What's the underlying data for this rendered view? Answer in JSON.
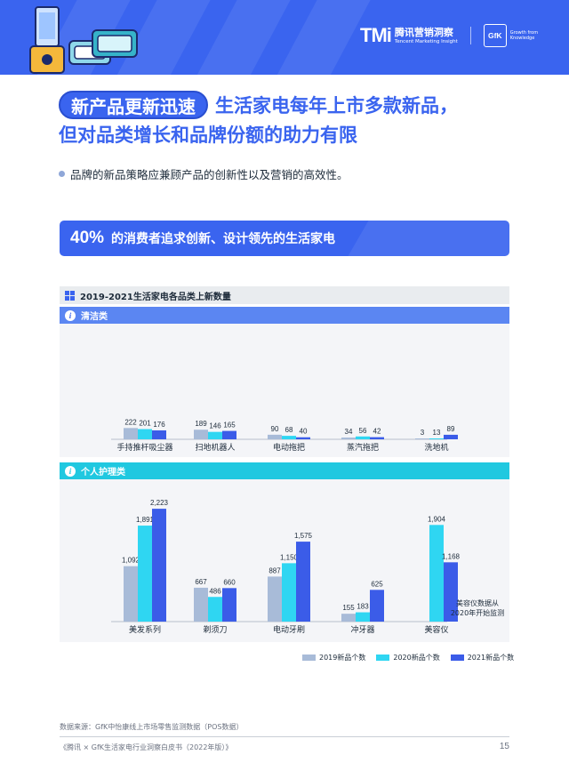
{
  "header": {
    "brand_tmi": "TMi",
    "brand_cn": "腾讯营销洞察",
    "brand_en": "Tencent Marketing Insight",
    "gfk_logo": "GfK",
    "gfk_tagline": "Growth from Knowledge",
    "illustration_icon": "blender-appliance-icon"
  },
  "title": {
    "pill": "新产品更新迅速",
    "line1_rest": "生活家电每年上市多款新品，",
    "line2": "但对品类增长和品牌份额的助力有限"
  },
  "bullet": "品牌的新品策略应兼顾产品的创新性以及营销的高效性。",
  "highlight": {
    "percent": "40%",
    "text": "的消费者追求创新、设计领先的生活家电"
  },
  "chart_panel": {
    "title": "2019-2021生活家电各品类上新数量"
  },
  "colors": {
    "brand_blue": "#3a64ef",
    "cat_clean_bar": "#5b86f2",
    "cat_care_bar": "#20c8e0",
    "series_2019": "#a8bbd8",
    "series_2020": "#2fd6f2",
    "series_2021": "#3b5ce8"
  },
  "chart_data": [
    {
      "type": "bar",
      "title": "清洁类",
      "categories": [
        "手持推杆吸尘器",
        "扫地机器人",
        "电动拖把",
        "蒸汽拖把",
        "洗地机"
      ],
      "series": [
        {
          "name": "2019新品个数",
          "values": [
            222,
            189,
            90,
            34,
            3
          ]
        },
        {
          "name": "2020新品个数",
          "values": [
            201,
            146,
            68,
            56,
            13
          ]
        },
        {
          "name": "2021新品个数",
          "values": [
            176,
            165,
            40,
            42,
            89
          ]
        }
      ],
      "value_labels": [
        [
          "222",
          "201",
          "176"
        ],
        [
          "189",
          "146",
          "165"
        ],
        [
          "90",
          "68",
          "40"
        ],
        [
          "34",
          "56",
          "42"
        ],
        [
          "3",
          "13",
          "89"
        ]
      ],
      "ylim": [
        0,
        2400
      ],
      "grid": false,
      "legend": "bottom-right"
    },
    {
      "type": "bar",
      "title": "个人护理类",
      "categories": [
        "美发系列",
        "剃须刀",
        "电动牙刷",
        "冲牙器",
        "美容仪"
      ],
      "series": [
        {
          "name": "2019新品个数",
          "values": [
            1092,
            667,
            887,
            155,
            null
          ]
        },
        {
          "name": "2020新品个数",
          "values": [
            1891,
            486,
            1150,
            183,
            1904
          ]
        },
        {
          "name": "2021新品个数",
          "values": [
            2223,
            660,
            1575,
            625,
            1168
          ]
        }
      ],
      "value_labels": [
        [
          "1,092",
          "1,891",
          "2,223"
        ],
        [
          "667",
          "486",
          "660"
        ],
        [
          "887",
          "1,150",
          "1,575"
        ],
        [
          "155",
          "183",
          "625"
        ],
        [
          "",
          "1,904",
          "1,168"
        ]
      ],
      "annotation": [
        "美容仪数据从",
        "2020年开始监测"
      ],
      "ylim": [
        0,
        2400
      ],
      "grid": false,
      "legend": "bottom-right"
    }
  ],
  "legend": [
    "2019新品个数",
    "2020新品个数",
    "2021新品个数"
  ],
  "source": "数据来源：GfK中怡康线上市场零售监测数据（POS数据）",
  "footer": {
    "left": "《腾讯 × GfK生活家电行业洞察白皮书（2022年版）》",
    "page": "15"
  }
}
